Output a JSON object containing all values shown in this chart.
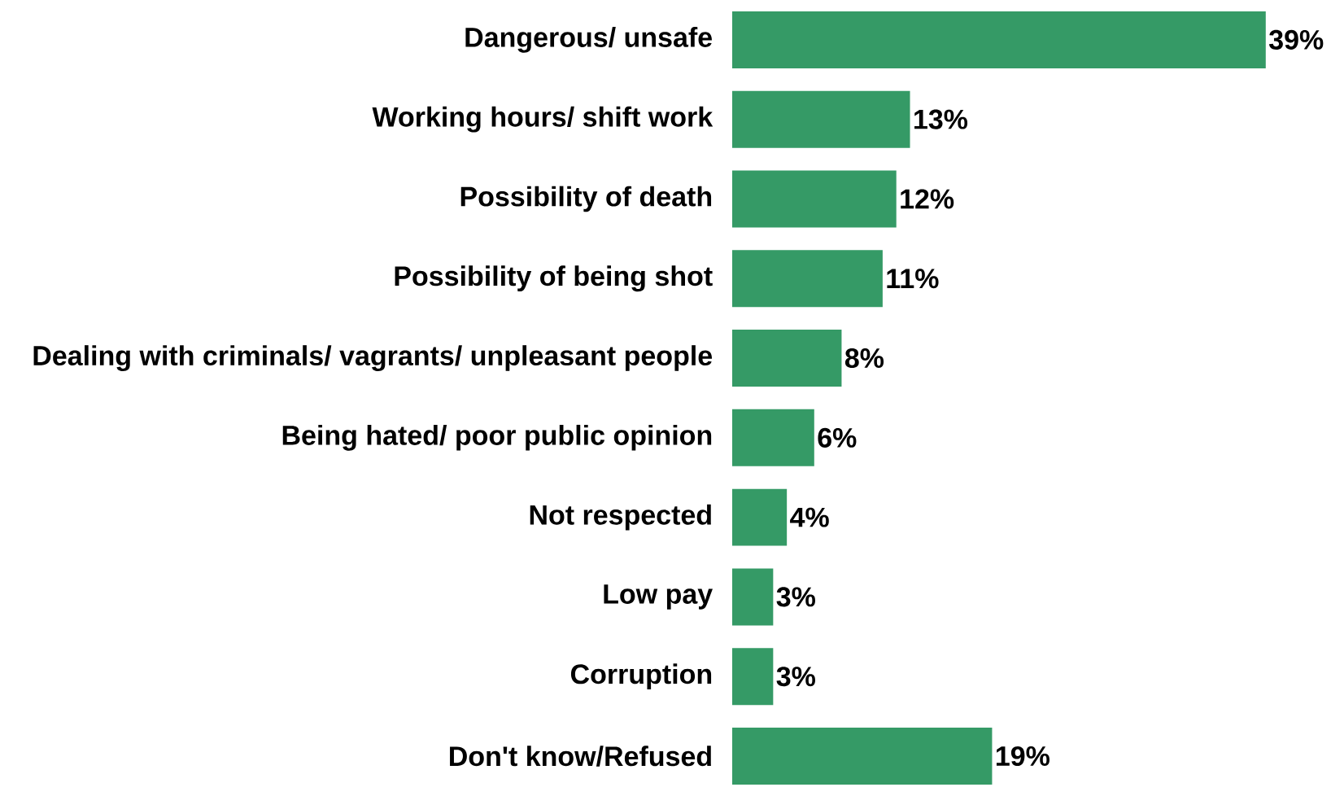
{
  "chart_data": {
    "type": "bar",
    "orientation": "horizontal",
    "categories": [
      "Dangerous/ unsafe",
      "Working hours/ shift work",
      "Possibility of death",
      "Possibility of being shot",
      "Dealing with criminals/ vagrants/ unpleasant people",
      "Being hated/ poor public opinion",
      "Not respected",
      "Low pay",
      "Corruption",
      "Don't know/Refused"
    ],
    "values": [
      39,
      13,
      12,
      11,
      8,
      6,
      4,
      3,
      3,
      19
    ],
    "value_labels": [
      "39%",
      "13%",
      "12%",
      "11%",
      "8%",
      "6%",
      "4%",
      "3%",
      "3%",
      "19%"
    ],
    "color": "#359a66",
    "tick_labels": "y"
  }
}
